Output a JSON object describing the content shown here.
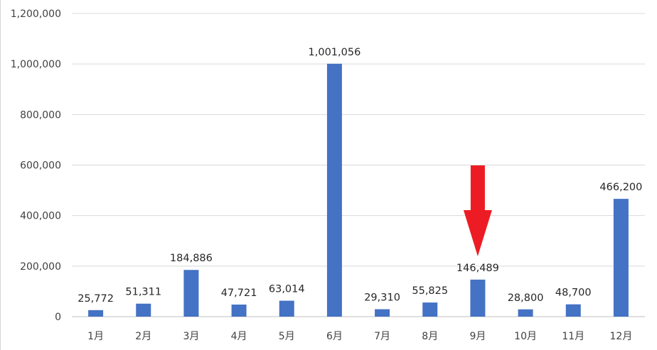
{
  "chart_data": {
    "type": "bar",
    "categories": [
      "1月",
      "2月",
      "3月",
      "4月",
      "5月",
      "6月",
      "7月",
      "8月",
      "9月",
      "10月",
      "11月",
      "12月"
    ],
    "values": [
      25772,
      51311,
      184886,
      47721,
      63014,
      1001056,
      29310,
      55825,
      146489,
      28800,
      48700,
      466200
    ],
    "data_labels": [
      "25,772",
      "51,311",
      "184,886",
      "47,721",
      "63,014",
      "1,001,056",
      "29,310",
      "55,825",
      "146,489",
      "28,800",
      "48,700",
      "466,200"
    ],
    "yticks": [
      "0",
      "200,000",
      "400,000",
      "600,000",
      "800,000",
      "1,000,000",
      "1,200,000"
    ],
    "ylim": [
      0,
      1200000
    ],
    "grid": true,
    "bar_color": "#4472c4",
    "annotation": {
      "type": "red-down-arrow",
      "target_category": "9月",
      "color": "#ed1c24"
    }
  }
}
